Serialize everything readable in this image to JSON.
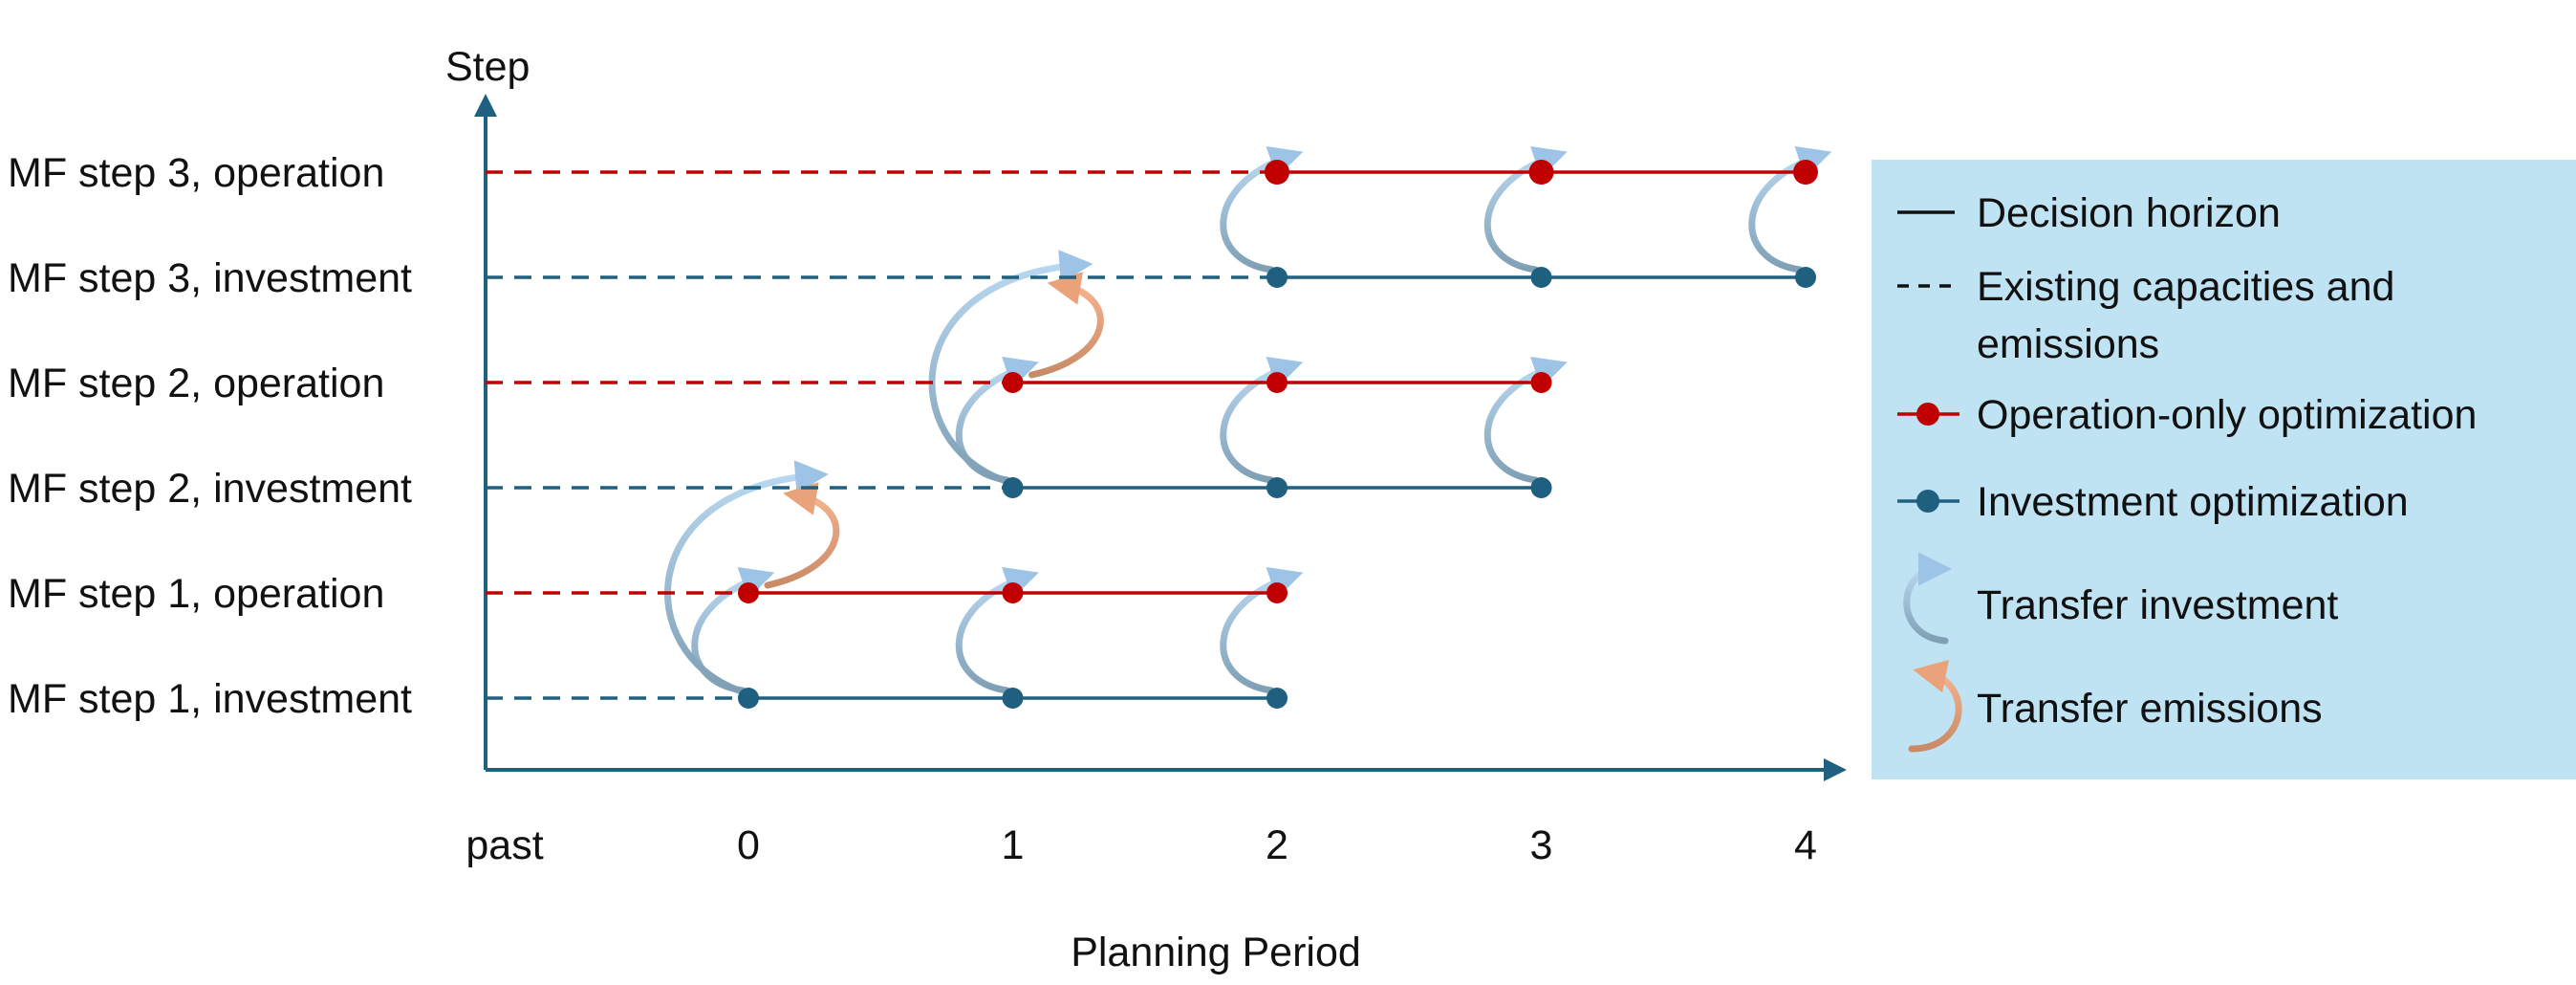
{
  "axes": {
    "y_title": "Step",
    "x_title": "Planning Period",
    "x_ticks": [
      "past",
      "0",
      "1",
      "2",
      "3",
      "4"
    ]
  },
  "rows": [
    {
      "label": "MF step 3, operation",
      "kind": "operation",
      "start": 2,
      "end": 4
    },
    {
      "label": "MF step 3, investment",
      "kind": "investment",
      "start": 2,
      "end": 4
    },
    {
      "label": "MF step 2, operation",
      "kind": "operation",
      "start": 1,
      "end": 3
    },
    {
      "label": "MF step 2, investment",
      "kind": "investment",
      "start": 1,
      "end": 3
    },
    {
      "label": "MF step 1, operation",
      "kind": "operation",
      "start": 0,
      "end": 2
    },
    {
      "label": "MF step 1, investment",
      "kind": "investment",
      "start": 0,
      "end": 2
    }
  ],
  "transfers": {
    "investment_short": [
      {
        "row_from": 5,
        "row_to": 4,
        "period": 0
      },
      {
        "row_from": 5,
        "row_to": 4,
        "period": 1
      },
      {
        "row_from": 5,
        "row_to": 4,
        "period": 2
      },
      {
        "row_from": 3,
        "row_to": 2,
        "period": 1
      },
      {
        "row_from": 3,
        "row_to": 2,
        "period": 2
      },
      {
        "row_from": 3,
        "row_to": 2,
        "period": 3
      },
      {
        "row_from": 1,
        "row_to": 0,
        "period": 2
      },
      {
        "row_from": 1,
        "row_to": 0,
        "period": 3
      },
      {
        "row_from": 1,
        "row_to": 0,
        "period": 4
      }
    ],
    "investment_long": [
      {
        "row_from": 5,
        "row_to": 3,
        "period": 0
      },
      {
        "row_from": 3,
        "row_to": 1,
        "period": 1
      }
    ],
    "emissions": [
      {
        "row_from": 4,
        "row_to": 3,
        "period": 0
      },
      {
        "row_from": 2,
        "row_to": 1,
        "period": 1
      }
    ]
  },
  "legend": {
    "items": [
      {
        "key": "decision-horizon",
        "label": "Decision horizon",
        "symbol": "solid-line"
      },
      {
        "key": "existing-capacities",
        "label": "Existing capacities and",
        "label2": "emissions",
        "symbol": "dashed-line"
      },
      {
        "key": "operation-only",
        "label": "Operation-only optimization",
        "symbol": "red-line-dot"
      },
      {
        "key": "investment-opt",
        "label": "Investment optimization",
        "symbol": "blue-line-dot"
      },
      {
        "key": "transfer-investment",
        "label": "Transfer investment",
        "symbol": "blue-curved-arrow"
      },
      {
        "key": "transfer-emissions",
        "label": "Transfer emissions",
        "symbol": "orange-curved-arrow"
      }
    ]
  },
  "colors": {
    "operation": "#c00000",
    "investment": "#1f6080",
    "axis": "#1f6080",
    "transfer_investment": "#9dc3e6",
    "transfer_emissions": "#e9a27a",
    "legend_bg": "#bfe3f3"
  }
}
